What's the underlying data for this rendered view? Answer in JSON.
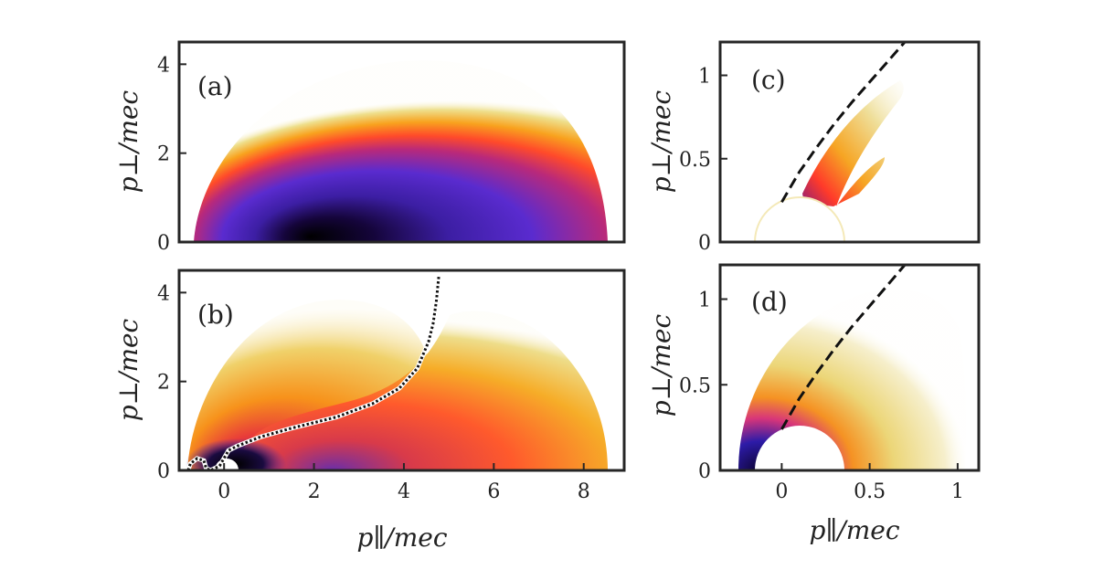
{
  "chart_data": [
    {
      "id": "a",
      "type": "heatmap",
      "panel_label": "(a)",
      "ylabel": "p⊥/mec",
      "xlabel": "",
      "xlim": [
        -1,
        8.9
      ],
      "ylim": [
        0,
        4.5
      ],
      "yticks": [
        "0",
        "2",
        "4"
      ],
      "ytick_values": [
        0,
        2,
        4
      ],
      "xticks": [],
      "curves": []
    },
    {
      "id": "b",
      "type": "heatmap",
      "panel_label": "(b)",
      "ylabel": "p⊥/mec",
      "xlabel": "p∥/mec",
      "xlim": [
        -1,
        8.9
      ],
      "ylim": [
        0,
        4.5
      ],
      "yticks": [
        "0",
        "2",
        "4"
      ],
      "ytick_values": [
        0,
        2,
        4
      ],
      "xticks": [
        "0",
        "2",
        "4",
        "6",
        "8"
      ],
      "xtick_values": [
        0,
        2,
        4,
        6,
        8
      ],
      "curves": [
        {
          "style": "dotted",
          "description": "separatrix",
          "x": [
            -0.8,
            -0.75,
            -0.6,
            -0.45,
            -0.4,
            -0.3,
            -0.1,
            0.1,
            0.3,
            0.8,
            1.5,
            2.5,
            3.3,
            3.9,
            4.3,
            4.55,
            4.65,
            4.72,
            4.78
          ],
          "y": [
            0.0,
            0.15,
            0.27,
            0.22,
            0.05,
            0.0,
            0.1,
            0.45,
            0.55,
            0.75,
            0.95,
            1.2,
            1.5,
            1.85,
            2.3,
            2.9,
            3.3,
            3.8,
            4.4
          ]
        }
      ]
    },
    {
      "id": "c",
      "type": "heatmap",
      "panel_label": "(c)",
      "ylabel": "p⊥/mec",
      "xlabel": "",
      "xlim": [
        -0.35,
        1.12
      ],
      "ylim": [
        0,
        1.2
      ],
      "yticks": [
        "0",
        "0.5",
        "1"
      ],
      "ytick_values": [
        0,
        0.5,
        1
      ],
      "xticks": [],
      "curves": [
        {
          "style": "dashed",
          "x": [
            0.0,
            0.1,
            0.2,
            0.3,
            0.4,
            0.5,
            0.6,
            0.7
          ],
          "y": [
            0.24,
            0.42,
            0.57,
            0.71,
            0.84,
            0.96,
            1.08,
            1.2
          ]
        }
      ]
    },
    {
      "id": "d",
      "type": "heatmap",
      "panel_label": "(d)",
      "ylabel": "p⊥/mec",
      "xlabel": "p∥/mec",
      "xlim": [
        -0.35,
        1.12
      ],
      "ylim": [
        0,
        1.2
      ],
      "yticks": [
        "0",
        "0.5",
        "1"
      ],
      "ytick_values": [
        0,
        0.5,
        1
      ],
      "xticks": [
        "0",
        "0.5",
        "1"
      ],
      "xtick_values": [
        0,
        0.5,
        1
      ],
      "curves": [
        {
          "style": "dashed",
          "x": [
            0.0,
            0.1,
            0.2,
            0.3,
            0.4,
            0.5,
            0.6,
            0.7
          ],
          "y": [
            0.24,
            0.42,
            0.57,
            0.71,
            0.84,
            0.96,
            1.08,
            1.2
          ]
        }
      ]
    }
  ]
}
